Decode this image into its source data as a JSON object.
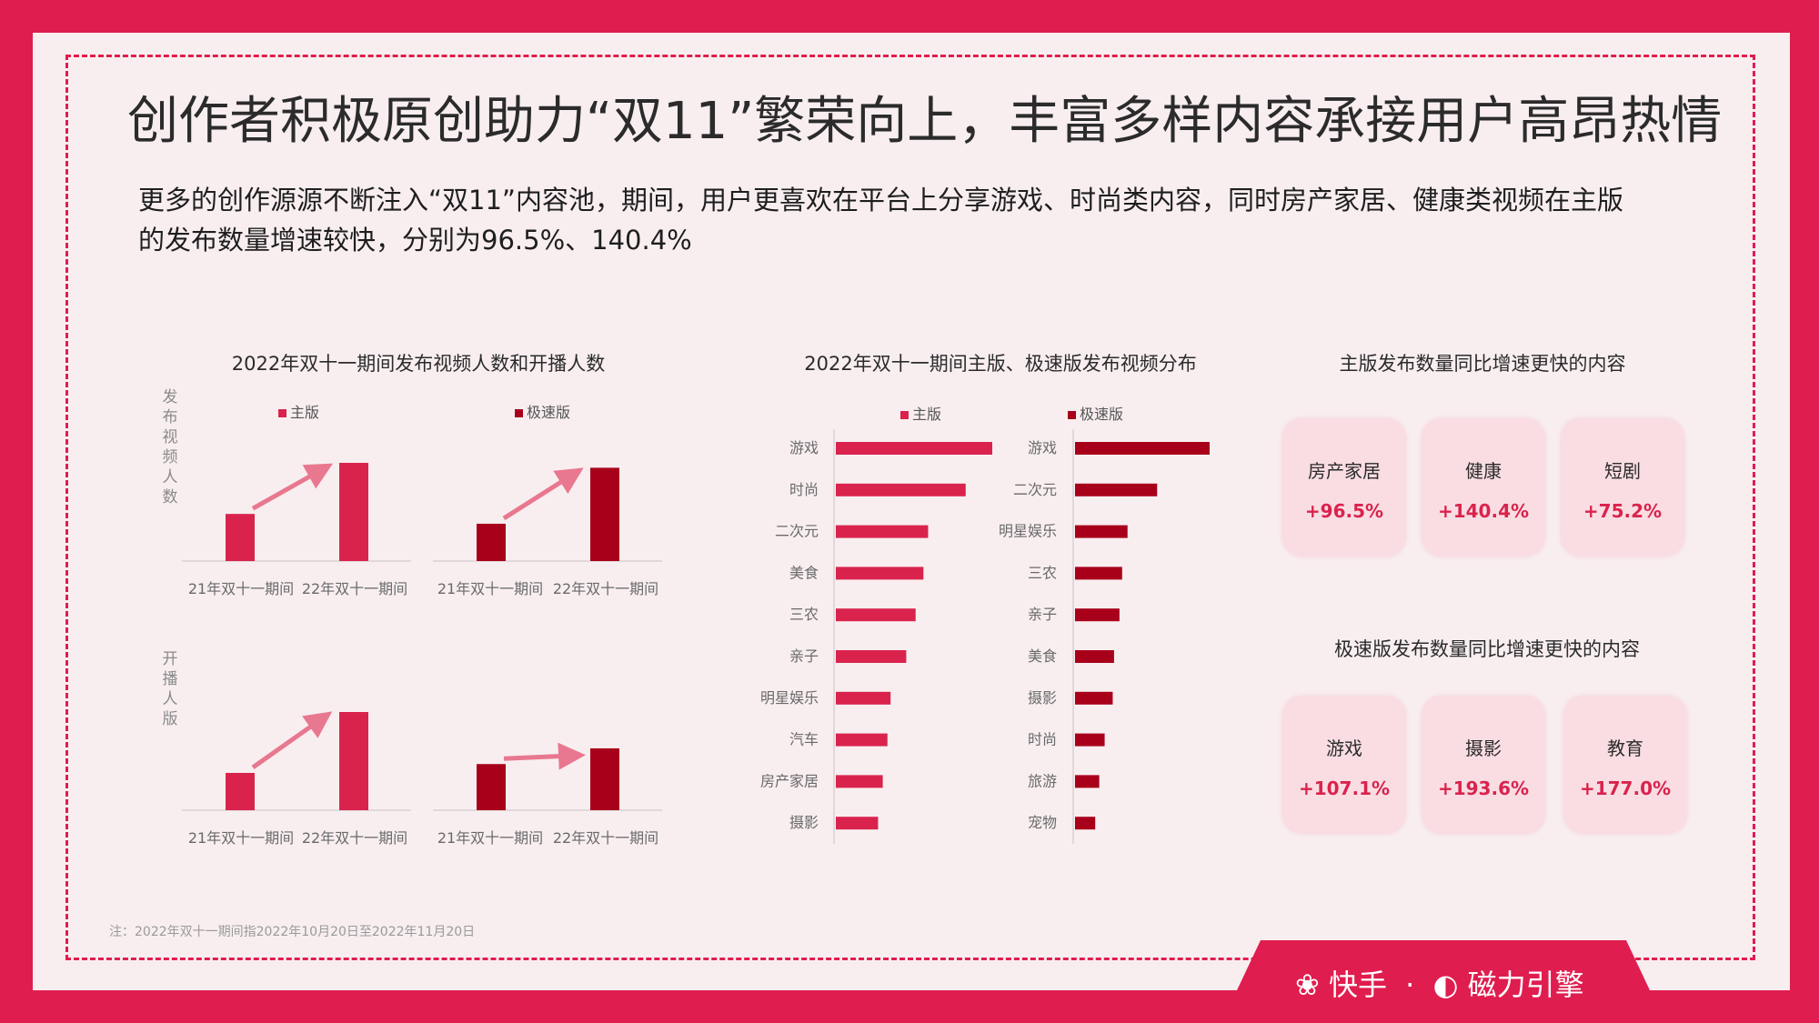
{
  "title": "创作者积极原创助力“双11”繁荣向上，丰富多样内容承接用户高昂热情",
  "description_lines": [
    "更多的创作源源不断注入“双11”内容池，期间，用户更喜欢在平台上分享游戏、时尚类内容，同时房产家居、健康类视频在主版",
    "的发布数量增速较快，分别为96.5%、140.4%"
  ],
  "section1": {
    "title": "2022年双十一期间发布视频人数和开播人数",
    "row1_label": "发布视频人数",
    "row2_label": "开播人版",
    "legend_main": "主版",
    "legend_express": "极速版"
  },
  "section2": {
    "title": "2022年双十一期间主版、极速版发布视频分布",
    "legend_main": "主版",
    "legend_express": "极速版"
  },
  "cards_main": {
    "title": "主版发布数量同比增速更快的内容",
    "items": [
      {
        "name": "房产家居",
        "pct": "+96.5%"
      },
      {
        "name": "健康",
        "pct": "+140.4%"
      },
      {
        "name": "短剧",
        "pct": "+75.2%"
      }
    ]
  },
  "cards_express": {
    "title": "极速版发布数量同比增速更快的内容",
    "items": [
      {
        "name": "游戏",
        "pct": "+107.1%"
      },
      {
        "name": "摄影",
        "pct": "+193.6%"
      },
      {
        "name": "教育",
        "pct": "+177.0%"
      }
    ]
  },
  "note": "注：2022年双十一期间指2022年10月20日至2022年11月20日",
  "brand": {
    "kuaishou": "快手",
    "sep": "·",
    "cili": "磁力引擎"
  },
  "colors": {
    "main": "#d9234d",
    "express": "#a8001a",
    "accent": "#e01d4f"
  },
  "chart_data": [
    {
      "type": "bar",
      "title": "2022年双十一期间发布视频人数和开播人数",
      "panel": "发布视频人数-主版",
      "categories": [
        "21年双十一期间",
        "22年双十一期间"
      ],
      "values": [
        0.48,
        1.0
      ]
    },
    {
      "type": "bar",
      "panel": "发布视频人数-极速版",
      "categories": [
        "21年双十一期间",
        "22年双十一期间"
      ],
      "values": [
        0.38,
        0.95
      ]
    },
    {
      "type": "bar",
      "panel": "开播人版-主版",
      "categories": [
        "21年双十一期间",
        "22年双十一期间"
      ],
      "values": [
        0.38,
        1.0
      ]
    },
    {
      "type": "bar",
      "panel": "开播人版-极速版",
      "categories": [
        "21年双十一期间",
        "22年双十一期间"
      ],
      "values": [
        0.47,
        0.63
      ]
    },
    {
      "type": "bar",
      "orientation": "horizontal",
      "title": "2022年双十一期间主版、极速版发布视频分布",
      "series_name": "主版",
      "categories": [
        "游戏",
        "时尚",
        "二次元",
        "美食",
        "三农",
        "亲子",
        "明星娱乐",
        "汽车",
        "房产家居",
        "摄影"
      ],
      "values": [
        100,
        83,
        59,
        56,
        51,
        45,
        35,
        33,
        30,
        27
      ]
    },
    {
      "type": "bar",
      "orientation": "horizontal",
      "series_name": "极速版",
      "categories": [
        "游戏",
        "二次元",
        "明星娱乐",
        "三农",
        "亲子",
        "美食",
        "摄影",
        "时尚",
        "旅游",
        "宠物"
      ],
      "values": [
        100,
        61,
        39,
        35,
        33,
        29,
        28,
        22,
        18,
        15
      ]
    }
  ]
}
